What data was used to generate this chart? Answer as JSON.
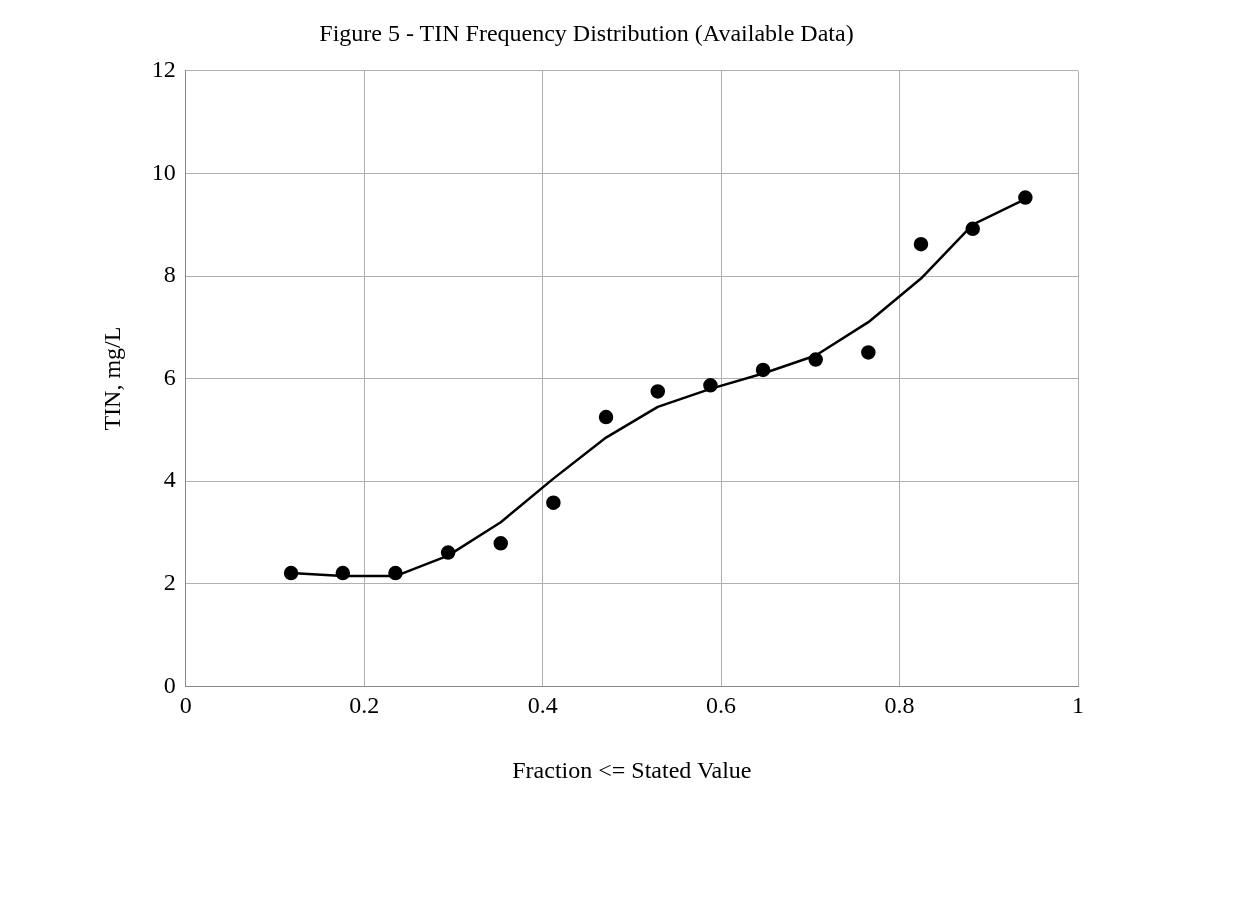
{
  "chart_data": {
    "type": "scatter",
    "title": "Figure 5 - TIN Frequency Distribution (Available Data)",
    "xlabel": "Fraction <= Stated Value",
    "ylabel": "TIN, mg/L",
    "series": [
      {
        "color": "#000000",
        "marker": "circle",
        "x": [
          0.118,
          0.176,
          0.235,
          0.294,
          0.353,
          0.412,
          0.471,
          0.529,
          0.588,
          0.647,
          0.706,
          0.765,
          0.824,
          0.882,
          0.941
        ],
        "values": [
          2.21,
          2.21,
          2.21,
          2.61,
          2.79,
          3.58,
          5.25,
          5.75,
          5.87,
          6.17,
          6.37,
          6.51,
          8.62,
          8.92,
          9.53
        ]
      },
      {
        "type": "line",
        "color": "#000000",
        "marker": "none",
        "line_style": "solid",
        "x": [
          0.118,
          0.176,
          0.235,
          0.294,
          0.353,
          0.412,
          0.471,
          0.529,
          0.588,
          0.647,
          0.706,
          0.765,
          0.824,
          0.882,
          0.941
        ],
        "values": [
          2.21,
          2.15,
          2.15,
          2.55,
          3.2,
          4.05,
          4.85,
          5.45,
          5.8,
          6.1,
          6.45,
          7.1,
          7.95,
          9.0,
          9.5
        ]
      }
    ],
    "xlim": [
      0,
      1
    ],
    "xticks": [
      0,
      0.2,
      0.4,
      0.6,
      0.8,
      1
    ],
    "ylim": [
      0,
      12
    ],
    "yticks": [
      0,
      2,
      4,
      6,
      8,
      10,
      12
    ],
    "grid": true,
    "legend": false
  }
}
